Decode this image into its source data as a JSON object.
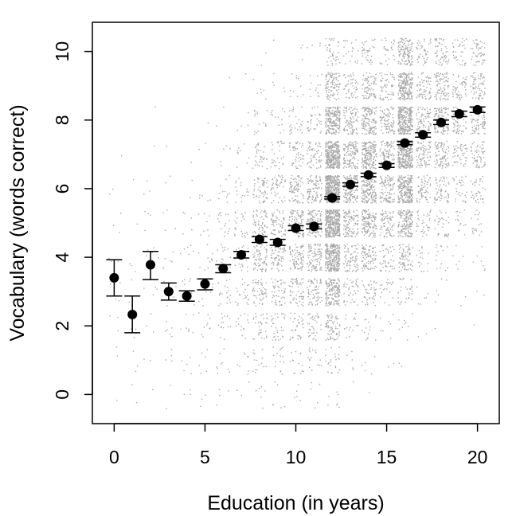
{
  "chart_data": {
    "type": "scatter",
    "xlabel": "Education (in years)",
    "ylabel": "Vocabulary (words correct)",
    "xlim": [
      -1.2,
      21.2
    ],
    "ylim": [
      -0.85,
      10.85
    ],
    "xticks": [
      "0",
      "5",
      "10",
      "15",
      "20"
    ],
    "xtick_values": [
      0,
      5,
      10,
      15,
      20
    ],
    "yticks": [
      "0",
      "2",
      "4",
      "6",
      "8",
      "10"
    ],
    "ytick_values": [
      0,
      2,
      4,
      6,
      8,
      10
    ],
    "grid": false,
    "jitter_point_color": "#a8a8a8",
    "mean_point_color": "#000000",
    "means": [
      {
        "x": 0,
        "mean": 3.4,
        "lo": 2.87,
        "hi": 3.93
      },
      {
        "x": 1,
        "mean": 2.33,
        "lo": 1.8,
        "hi": 2.87
      },
      {
        "x": 2,
        "mean": 3.78,
        "lo": 3.35,
        "hi": 4.17
      },
      {
        "x": 3,
        "mean": 3.0,
        "lo": 2.75,
        "hi": 3.25
      },
      {
        "x": 4,
        "mean": 2.87,
        "lo": 2.72,
        "hi": 3.02
      },
      {
        "x": 5,
        "mean": 3.22,
        "lo": 3.05,
        "hi": 3.37
      },
      {
        "x": 6,
        "mean": 3.67,
        "lo": 3.55,
        "hi": 3.78
      },
      {
        "x": 7,
        "mean": 4.07,
        "lo": 3.98,
        "hi": 4.17
      },
      {
        "x": 8,
        "mean": 4.52,
        "lo": 4.43,
        "hi": 4.6
      },
      {
        "x": 9,
        "mean": 4.43,
        "lo": 4.35,
        "hi": 4.52
      },
      {
        "x": 10,
        "mean": 4.85,
        "lo": 4.78,
        "hi": 4.92
      },
      {
        "x": 11,
        "mean": 4.9,
        "lo": 4.83,
        "hi": 4.97
      },
      {
        "x": 12,
        "mean": 5.73,
        "lo": 5.7,
        "hi": 5.77
      },
      {
        "x": 13,
        "mean": 6.12,
        "lo": 6.07,
        "hi": 6.17
      },
      {
        "x": 14,
        "mean": 6.4,
        "lo": 6.35,
        "hi": 6.45
      },
      {
        "x": 15,
        "mean": 6.68,
        "lo": 6.62,
        "hi": 6.73
      },
      {
        "x": 16,
        "mean": 7.33,
        "lo": 7.28,
        "hi": 7.38
      },
      {
        "x": 17,
        "mean": 7.57,
        "lo": 7.5,
        "hi": 7.63
      },
      {
        "x": 18,
        "mean": 7.93,
        "lo": 7.87,
        "hi": 8.0
      },
      {
        "x": 19,
        "mean": 8.18,
        "lo": 8.1,
        "hi": 8.26
      },
      {
        "x": 20,
        "mean": 8.3,
        "lo": 8.22,
        "hi": 8.38
      }
    ],
    "raw_data_note_density": {
      "x_years": [
        0,
        1,
        2,
        3,
        4,
        5,
        6,
        7,
        8,
        9,
        10,
        11,
        12,
        13,
        14,
        15,
        16,
        17,
        18,
        19,
        20
      ],
      "relative_count_per_year": [
        3,
        3,
        4,
        6,
        7,
        10,
        18,
        22,
        60,
        55,
        75,
        90,
        330,
        110,
        150,
        90,
        250,
        70,
        80,
        45,
        60
      ],
      "scores": [
        0,
        1,
        2,
        3,
        4,
        5,
        6,
        7,
        8,
        9,
        10
      ]
    }
  }
}
